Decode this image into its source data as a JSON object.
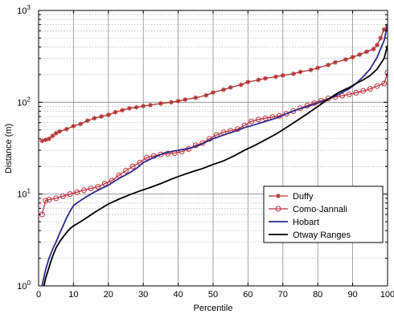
{
  "chart_data": {
    "type": "line",
    "title": "",
    "xlabel": "Percentile",
    "ylabel": "Distance (m)",
    "xlim": [
      0,
      100
    ],
    "ylim": [
      1,
      1000
    ],
    "yscale": "log",
    "grid": true,
    "legend_position": "lower-right",
    "x_ticks": [
      "0",
      "10",
      "20",
      "30",
      "40",
      "50",
      "60",
      "70",
      "80",
      "90",
      "100"
    ],
    "y_ticks": [
      {
        "base": "10",
        "exp": "0"
      },
      {
        "base": "10",
        "exp": "1"
      },
      {
        "base": "10",
        "exp": "2"
      },
      {
        "base": "10",
        "exp": "3"
      }
    ],
    "series": [
      {
        "name": "Duffy",
        "color": "#b03030",
        "marker": "star",
        "x": [
          1,
          2,
          3,
          4,
          5,
          6,
          8,
          10,
          12,
          14,
          16,
          18,
          20,
          22,
          24,
          26,
          28,
          30,
          32,
          35,
          38,
          40,
          42,
          45,
          48,
          50,
          53,
          55,
          58,
          60,
          63,
          65,
          68,
          70,
          73,
          75,
          78,
          80,
          83,
          85,
          88,
          90,
          92,
          94,
          96,
          97,
          98,
          99,
          100
        ],
        "y": [
          38,
          39,
          40,
          43,
          46,
          48,
          51,
          55,
          58,
          63,
          67,
          70,
          73,
          78,
          82,
          86,
          88,
          91,
          93,
          97,
          100,
          103,
          107,
          112,
          119,
          128,
          137,
          145,
          155,
          166,
          175,
          182,
          190,
          196,
          204,
          214,
          225,
          237,
          255,
          272,
          292,
          310,
          330,
          355,
          380,
          420,
          500,
          620,
          680
        ]
      },
      {
        "name": "Como-Jannali",
        "color": "#c03040",
        "marker": "circle",
        "x": [
          1,
          2,
          3,
          5,
          7,
          9,
          11,
          13,
          15,
          17,
          19,
          21,
          23,
          25,
          27,
          29,
          31,
          33,
          35,
          37,
          39,
          41,
          43,
          45,
          47,
          49,
          51,
          53,
          55,
          57,
          59,
          61,
          63,
          65,
          67,
          69,
          71,
          73,
          75,
          77,
          79,
          81,
          83,
          85,
          87,
          89,
          91,
          93,
          95,
          97,
          99,
          100
        ],
        "y": [
          6,
          8.5,
          8.7,
          9,
          9.5,
          10,
          10.5,
          11,
          11.5,
          12,
          13,
          14,
          16,
          18,
          20,
          22,
          25,
          26,
          27,
          27.5,
          28,
          29,
          31,
          34,
          36,
          40,
          44,
          47,
          49,
          51,
          56,
          62,
          65,
          67,
          69,
          71,
          75,
          80,
          86,
          92,
          98,
          104,
          110,
          114,
          118,
          122,
          127,
          133,
          140,
          150,
          160,
          210
        ]
      },
      {
        "name": "Hobart",
        "color": "#2e2a8e",
        "marker": "none",
        "x": [
          1,
          2,
          3,
          4,
          5,
          6,
          7,
          8,
          9,
          10,
          12,
          14,
          16,
          18,
          20,
          22,
          24,
          26,
          28,
          30,
          32,
          34,
          36,
          38,
          40,
          42,
          44,
          46,
          48,
          50,
          53,
          56,
          59,
          62,
          65,
          68,
          71,
          74,
          77,
          80,
          83,
          86,
          89,
          91,
          93,
          95,
          97,
          99,
          100
        ],
        "y": [
          1,
          1.5,
          2.0,
          2.5,
          3.0,
          3.7,
          4.5,
          5.5,
          6.5,
          7.5,
          8.5,
          9.5,
          10.5,
          11.5,
          12.5,
          14,
          15.5,
          17,
          19,
          22,
          24,
          26,
          28,
          29,
          30,
          31,
          32,
          34,
          37,
          40,
          44,
          48,
          53,
          57,
          62,
          67,
          75,
          83,
          90,
          98,
          108,
          122,
          140,
          160,
          190,
          230,
          310,
          470,
          700
        ]
      },
      {
        "name": "Otway Ranges",
        "color": "#000000",
        "marker": "none",
        "x": [
          1,
          2,
          3,
          4,
          5,
          6,
          7,
          8,
          9,
          10,
          12,
          14,
          16,
          18,
          20,
          23,
          26,
          29,
          32,
          35,
          38,
          41,
          44,
          47,
          50,
          53,
          56,
          59,
          62,
          65,
          68,
          71,
          74,
          77,
          80,
          83,
          86,
          89,
          91,
          93,
          95,
          97,
          99,
          100
        ],
        "y": [
          0.8,
          1.2,
          1.6,
          2.1,
          2.6,
          3.0,
          3.4,
          3.8,
          4.2,
          4.5,
          5.0,
          5.6,
          6.3,
          7.0,
          7.8,
          8.8,
          9.8,
          10.8,
          11.8,
          13,
          14.5,
          16,
          17.5,
          19,
          21,
          23,
          26,
          30,
          34,
          39,
          45,
          53,
          63,
          75,
          90,
          108,
          128,
          145,
          160,
          175,
          195,
          230,
          300,
          420
        ]
      }
    ]
  }
}
